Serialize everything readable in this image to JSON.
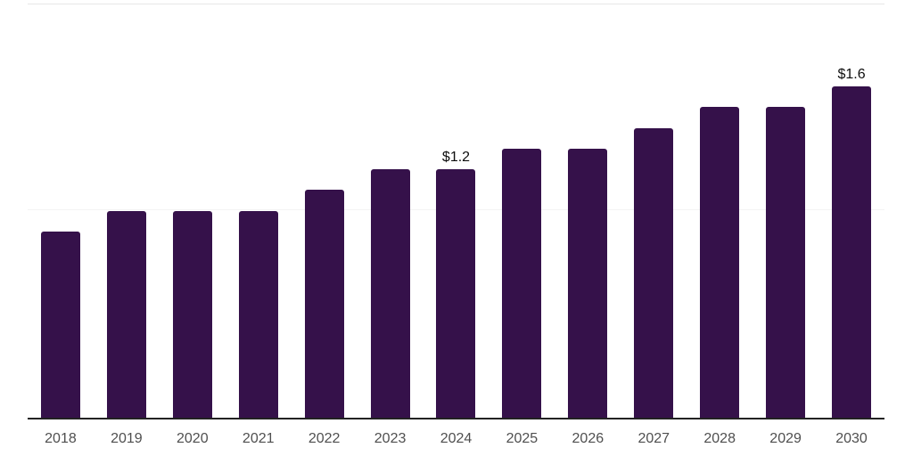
{
  "chart_data": {
    "type": "bar",
    "categories": [
      "2018",
      "2019",
      "2020",
      "2021",
      "2022",
      "2023",
      "2024",
      "2025",
      "2026",
      "2027",
      "2028",
      "2029",
      "2030"
    ],
    "values": [
      0.9,
      1.0,
      1.0,
      1.0,
      1.1,
      1.2,
      1.2,
      1.3,
      1.3,
      1.4,
      1.5,
      1.5,
      1.6
    ],
    "data_labels": [
      "",
      "",
      "",
      "",
      "",
      "",
      "$1.2",
      "",
      "",
      "",
      "",
      "",
      "$1.6"
    ],
    "ylim": [
      0,
      2
    ],
    "gridline_values": [
      1,
      2
    ],
    "grid": "horizontal-only",
    "legend": "none",
    "y_axis_labels_visible": false,
    "colors": {
      "bar": "#35114a",
      "axis_line": "#222222",
      "gridline_major": "#e7e7e7",
      "gridline_minor": "#f3f3f3",
      "tick_label": "#4f4f4f",
      "value_label": "#0d0d0d",
      "background": "#ffffff"
    }
  }
}
